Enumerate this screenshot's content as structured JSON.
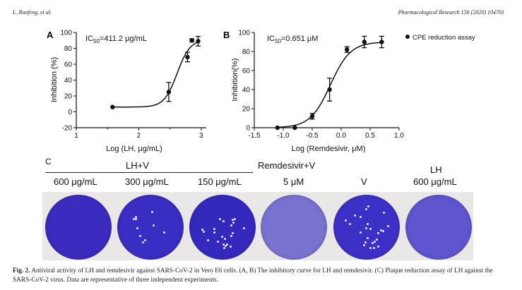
{
  "header": {
    "authors": "L. Runfeng, et al.",
    "journal": "Pharmacological Research 156 (2020) 104761"
  },
  "chart_data": [
    {
      "panel": "A",
      "type": "scatter",
      "title": "",
      "annotation_prefix": "IC",
      "annotation_sub": "50",
      "annotation_value": "=411.2 μg/mL",
      "xlabel": "Log (LH, μg/mL)",
      "ylabel": "Inhibition (%)",
      "xlim": [
        1,
        3.08
      ],
      "ylim": [
        -20,
        100
      ],
      "xticks": [
        1,
        2,
        3
      ],
      "xtick_labels": [
        "1",
        "2",
        "3"
      ],
      "yticks": [
        -20,
        0,
        20,
        40,
        60,
        80,
        100
      ],
      "ytick_labels": [
        "-20",
        "0",
        "20",
        "40",
        "60",
        "80",
        "100"
      ],
      "points": [
        {
          "x": 1.58,
          "y": 6,
          "err": 0
        },
        {
          "x": 2.48,
          "y": 25,
          "err": 12
        },
        {
          "x": 2.78,
          "y": 69,
          "err": 6
        },
        {
          "x": 2.85,
          "y": 90,
          "err": 2
        },
        {
          "x": 2.95,
          "y": 89,
          "err": 6
        }
      ],
      "fit": {
        "bottom": 6,
        "top": 91,
        "logIC50": 2.614,
        "hill": 4.2,
        "xrange": [
          1.58,
          2.97
        ]
      }
    },
    {
      "panel": "B",
      "type": "scatter",
      "title": "",
      "annotation_prefix": "IC",
      "annotation_sub": "50",
      "annotation_value": "=0.651 μM",
      "xlabel": "Log (Remdesivir, μM)",
      "ylabel": "Inhibition(%)",
      "xlim": [
        -1.5,
        1.0
      ],
      "ylim": [
        0,
        100
      ],
      "xticks": [
        -1.5,
        -1.0,
        -0.5,
        0.0,
        0.5,
        1.0
      ],
      "xtick_labels": [
        "-1.5",
        "-1.0",
        "-0.5",
        "0.0",
        "0.5",
        "1.0"
      ],
      "yticks": [
        0,
        20,
        40,
        60,
        80,
        100
      ],
      "ytick_labels": [
        "0",
        "20",
        "40",
        "60",
        "80",
        "100"
      ],
      "legend": {
        "label": "CPE reduction assay",
        "position": "top-right"
      },
      "points": [
        {
          "x": -1.1,
          "y": 0,
          "err": 0
        },
        {
          "x": -0.8,
          "y": 0,
          "err": 0
        },
        {
          "x": -0.5,
          "y": 12,
          "err": 3
        },
        {
          "x": -0.2,
          "y": 40,
          "err": 12
        },
        {
          "x": 0.1,
          "y": 82,
          "err": 3
        },
        {
          "x": 0.4,
          "y": 90,
          "err": 6
        },
        {
          "x": 0.7,
          "y": 90,
          "err": 6
        }
      ],
      "fit": {
        "bottom": 0,
        "top": 90,
        "logIC50": -0.186,
        "hill": 2.5,
        "xrange": [
          -1.1,
          0.7
        ]
      }
    }
  ],
  "panel_c": {
    "letter": "C",
    "groups": [
      {
        "label": "LH+V",
        "sublabels": [
          "600 μg/mL",
          "300 μg/mL",
          "150 μg/mL"
        ]
      },
      {
        "label": "Remdesivir+V",
        "sublabels": [
          "5 μM"
        ]
      },
      {
        "label": "",
        "sublabels": [
          "V"
        ]
      },
      {
        "label": "LH",
        "sublabels": [
          "600 μg/mL"
        ]
      }
    ],
    "plates": [
      {
        "condition": "LH+V 600 μg/mL",
        "color": "#3b2bbf"
      },
      {
        "condition": "LH+V 300 μg/mL",
        "color": "#3a2dc4"
      },
      {
        "condition": "LH+V 150 μg/mL",
        "color": "#3529bd"
      },
      {
        "condition": "Remdesivir+V 5 μM",
        "color": "#7a72cf"
      },
      {
        "condition": "V",
        "color": "#3d30c6"
      },
      {
        "condition": "LH 600 μg/mL",
        "color": "#5f55cf"
      }
    ]
  },
  "caption": {
    "label": "Fig. 2.",
    "text": " Antiviral activity of LH and remdesivir against SARS-CoV-2 in Vero E6 cells. (A, B) The inhibitory curve for LH and remdesivir. (C) Plaque reduction assay of LH against the SARS-CoV-2 virus. Data are representative of three independent experiments."
  }
}
